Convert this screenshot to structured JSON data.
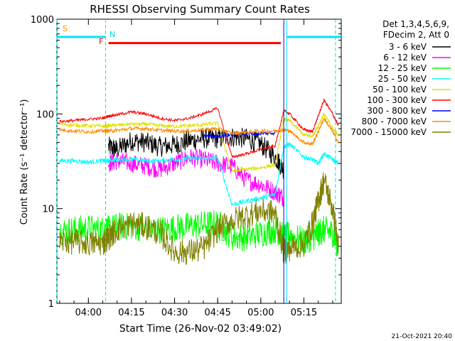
{
  "chart_data": {
    "type": "line",
    "title": "RHESSI Observing Summary Count Rates",
    "xlabel": "Start Time (26-Nov-02 03:49:02)",
    "ylabel": "Count Rate (s⁻¹ detector⁻¹)",
    "yscale": "log",
    "ylim": [
      1,
      1000
    ],
    "xlim": [
      "03:49:02",
      "05:28:00"
    ],
    "x_ticks": [
      "04:00",
      "04:15",
      "04:30",
      "04:45",
      "05:00",
      "05:15"
    ],
    "y_ticks": [
      "1",
      "10",
      "100",
      "1000"
    ],
    "legend_header": [
      "Det 1,3,4,5,6,9,",
      "FDecim 2, Att 0"
    ],
    "legend_position": "right",
    "timestamp": "21-Oct-2021 20:40",
    "flags": [
      {
        "label": "S",
        "color": "#ff8c00"
      },
      {
        "label": "N",
        "color": "#00e5ee"
      },
      {
        "label": "F",
        "color": "#ff0000"
      }
    ],
    "flag_segments": [
      {
        "flag": "N",
        "color": "#00e5ee",
        "level": 650,
        "start": "03:49",
        "end": "04:06"
      },
      {
        "flag": "N",
        "color": "#00e5ee",
        "level": 650,
        "start": "05:09",
        "end": "05:28"
      },
      {
        "flag": "F",
        "color": "#ff0000",
        "level": 560,
        "start": "04:07",
        "end": "05:07"
      }
    ],
    "vertical_lines": [
      {
        "time": "03:49",
        "style": "dashed",
        "color": "#00e5ee"
      },
      {
        "time": "04:06",
        "style": "dashed",
        "color": "#00e5ee"
      },
      {
        "time": "05:08",
        "style": "solid",
        "color": "#0000ff"
      },
      {
        "time": "05:09",
        "style": "solid",
        "color": "#00e5ee"
      },
      {
        "time": "05:26",
        "style": "dashed",
        "color": "#00e5ee"
      }
    ],
    "series_times": [
      "03:50",
      "03:55",
      "04:00",
      "04:05",
      "04:07",
      "04:10",
      "04:15",
      "04:20",
      "04:25",
      "04:30",
      "04:35",
      "04:40",
      "04:45",
      "04:50",
      "04:55",
      "05:00",
      "05:05",
      "05:08",
      "05:10",
      "05:15",
      "05:18",
      "05:20",
      "05:22",
      "05:25",
      "05:27"
    ],
    "series": [
      {
        "name": "3 - 6 keV",
        "color": "#000000",
        "noise": 0.22,
        "values": [
          null,
          null,
          null,
          null,
          45,
          42,
          52,
          50,
          45,
          47,
          52,
          55,
          55,
          57,
          55,
          48,
          35,
          26,
          null,
          null,
          null,
          null,
          null,
          null,
          null
        ]
      },
      {
        "name": "6 - 12 keV",
        "color": "#ff00ff",
        "noise": 0.2,
        "values": [
          null,
          null,
          null,
          null,
          30,
          32,
          30,
          28,
          26,
          30,
          35,
          33,
          30,
          28,
          20,
          18,
          15,
          13,
          null,
          null,
          null,
          null,
          null,
          null,
          null
        ]
      },
      {
        "name": "12 - 25 keV",
        "color": "#00ff00",
        "noise": 0.3,
        "values": [
          5.8,
          6.0,
          6.2,
          6.0,
          6.0,
          6.5,
          6.5,
          6.2,
          6.0,
          6.3,
          6.5,
          6.8,
          7.0,
          5,
          5,
          5.5,
          6,
          5,
          5.3,
          4.5,
          5,
          5.5,
          6,
          5.5,
          4
        ]
      },
      {
        "name": "25 - 50 keV",
        "color": "#00ffff",
        "noise": 0.05,
        "values": [
          32,
          32,
          31,
          32,
          32,
          33,
          33,
          32,
          32,
          33,
          34,
          34,
          34,
          11,
          12,
          13,
          14,
          45,
          48,
          35,
          33,
          30,
          38,
          33,
          30
        ]
      },
      {
        "name": "50 - 100 keV",
        "color": "#e0e000",
        "noise": 0.04,
        "values": [
          78,
          76,
          75,
          74,
          75,
          76,
          78,
          78,
          75,
          74,
          75,
          77,
          80,
          25,
          26,
          27,
          29,
          88,
          85,
          60,
          58,
          75,
          100,
          70,
          60
        ]
      },
      {
        "name": "100 - 300 keV",
        "color": "#ff0000",
        "noise": 0.03,
        "values": [
          83,
          85,
          88,
          90,
          95,
          98,
          105,
          100,
          90,
          85,
          90,
          100,
          115,
          35,
          38,
          42,
          46,
          108,
          100,
          68,
          65,
          95,
          140,
          100,
          75
        ]
      },
      {
        "name": "300 - 800 keV",
        "color": "#0000ff",
        "noise": 0.04,
        "values": [
          null,
          null,
          null,
          null,
          null,
          null,
          null,
          null,
          null,
          null,
          null,
          58,
          58,
          60,
          62,
          62,
          63,
          null,
          null,
          null,
          null,
          null,
          null,
          null,
          null
        ]
      },
      {
        "name": "800 - 7000 keV",
        "color": "#ff8c00",
        "noise": 0.04,
        "values": [
          68,
          66,
          65,
          66,
          66,
          67,
          70,
          70,
          67,
          66,
          66,
          68,
          70,
          62,
          64,
          66,
          66,
          68,
          66,
          50,
          48,
          65,
          90,
          65,
          50
        ]
      },
      {
        "name": "7000 - 15000 keV",
        "color": "#808000",
        "noise": 0.28,
        "values": [
          4.5,
          4.5,
          4.3,
          4.3,
          5,
          6,
          7,
          6.5,
          5.5,
          3.5,
          3.5,
          3.8,
          6,
          7.5,
          8.5,
          9.5,
          9,
          3.5,
          3.8,
          4.2,
          7,
          12,
          20,
          10,
          4
        ]
      }
    ]
  }
}
